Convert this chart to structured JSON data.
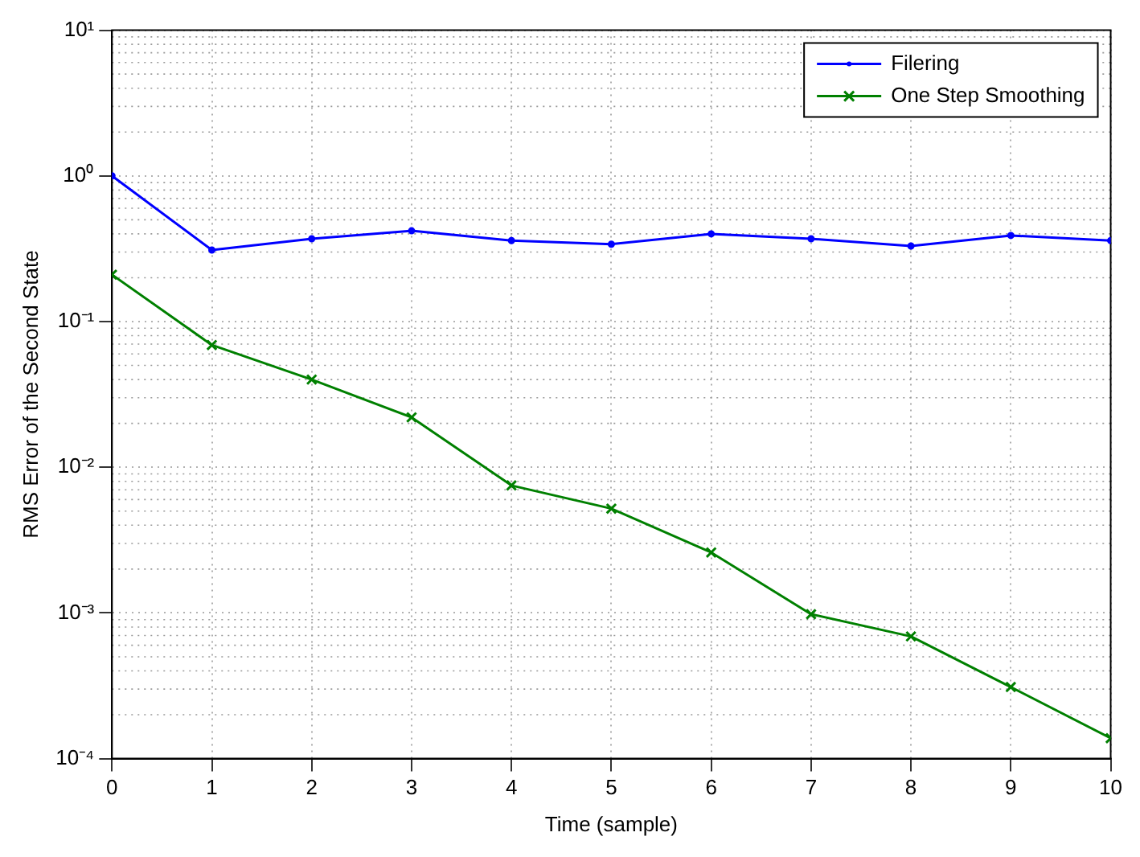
{
  "chart_data": {
    "type": "line",
    "xlabel": "Time (sample)",
    "ylabel": "RMS Error of the Second State",
    "x": [
      0,
      1,
      2,
      3,
      4,
      5,
      6,
      7,
      8,
      9,
      10
    ],
    "series": [
      {
        "name": "Filering",
        "color": "#0000ff",
        "marker": "circle",
        "values": [
          1.0,
          0.31,
          0.37,
          0.42,
          0.36,
          0.34,
          0.4,
          0.37,
          0.33,
          0.39,
          0.36
        ]
      },
      {
        "name": "One Step Smoothing",
        "color": "#008000",
        "marker": "cross",
        "values": [
          0.21,
          0.069,
          0.04,
          0.022,
          0.0075,
          0.0052,
          0.0026,
          0.00098,
          0.00069,
          0.00031,
          0.000138
        ]
      }
    ],
    "log": "y",
    "xlim": [
      0,
      10
    ],
    "xticks": [
      0,
      1,
      2,
      3,
      4,
      5,
      6,
      7,
      8,
      9,
      10
    ],
    "ylim": [
      0.0001,
      10
    ],
    "yticks": [
      {
        "value": 0.0001,
        "label": "10⁻⁴"
      },
      {
        "value": 0.001,
        "label": "10⁻³"
      },
      {
        "value": 0.01,
        "label": "10⁻²"
      },
      {
        "value": 0.1,
        "label": "10⁻¹"
      },
      {
        "value": 1,
        "label": "10⁰"
      },
      {
        "value": 10,
        "label": "10¹"
      }
    ],
    "grid": true,
    "legend": "top right",
    "line_style": "solid"
  }
}
